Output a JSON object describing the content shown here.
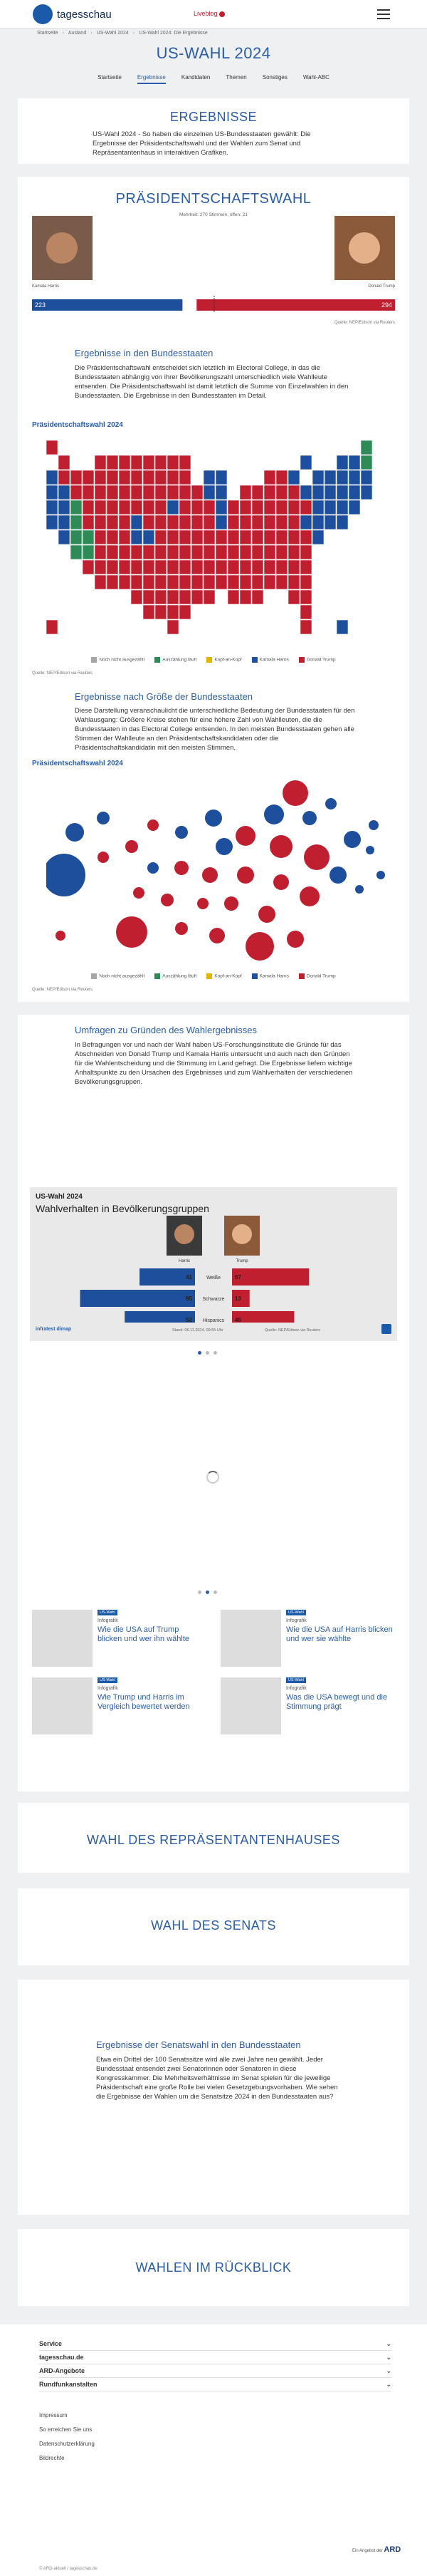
{
  "header": {
    "logo": "tagesschau",
    "liveblog": "Liveblog"
  },
  "breadcrumb": [
    "Startseite",
    "Ausland",
    "US-Wahl 2024",
    "US-Wahl 2024: Die Ergebnisse"
  ],
  "page_title": "US-WAHL 2024",
  "nav": [
    "Startseite",
    "Ergebnisse",
    "Kandidaten",
    "Themen",
    "Sonstiges",
    "Wahl-ABC"
  ],
  "intro": {
    "heading": "ERGEBNISSE",
    "text": "US-Wahl 2024 - So haben die einzelnen US-Bundesstaaten gewählt: Die Ergebnisse der Präsidentschaftswahl und der Wahlen zum Senat und Repräsentantenhaus in interaktiven Grafiken."
  },
  "president": {
    "heading": "PRÄSIDENTSCHAFTSWAHL",
    "majority_label": "Mehrheit:",
    "majority": 270,
    "unit": "Stimmen, offen:",
    "open": 21,
    "candidates": [
      {
        "name": "Kamala Harris",
        "electors": 223,
        "color": "#1d4f9c"
      },
      {
        "name": "Donald Trump",
        "electors": 294,
        "color": "#c01f2f"
      }
    ],
    "source": "Quelle: NEP/Edison via Reuters"
  },
  "states_section": {
    "heading": "Ergebnisse in den Bundesstaaten",
    "text": "Die Präsidentschaftswahl entscheidet sich letztlich im Electoral College, in das die Bundesstaaten abhängig von ihrer Bevölkerungszahl unterschiedlich viele Wahlleute entsenden. Die Präsidentschaftswahl ist damit letztlich die Summe von Einzelwahlen in den Bundesstaaten. Die Ergebnisse in den Bundesstaaten im Detail.",
    "chart_title": "Präsidentschaftswahl 2024",
    "source": "Quelle: NEP/Edison via Reuters"
  },
  "legend": [
    {
      "label": "Noch nicht ausgezählt",
      "color": "#a5a5a5"
    },
    {
      "label": "Auszählung läuft",
      "color": "#2e8b57"
    },
    {
      "label": "Kopf-an-Kopf",
      "color": "#e0b400"
    },
    {
      "label": "Kamala Harris",
      "color": "#1d4f9c"
    },
    {
      "label": "Donald Trump",
      "color": "#c01f2f"
    }
  ],
  "size_section": {
    "heading": "Ergebnisse nach Größe der Bundesstaaten",
    "text": "Diese Darstellung veranschaulicht die unterschiedliche Bedeutung der Bundesstaaten für den Wahlausgang: Größere Kreise stehen für eine höhere Zahl von Wahlleuten, die die Bundesstaaten in das Electoral College entsenden. In den meisten Bundesstaaten gehen alle Stimmen der Wahlleute an den Präsidentschaftskandidaten oder die Präsidentschaftskandidatin mit den meisten Stimmen.",
    "chart_title": "Präsidentschaftswahl 2024",
    "source": "Quelle: NEP/Edison via Reuters"
  },
  "polls": {
    "heading": "Umfragen zu Gründen des Wahlergebnisses",
    "text": "In Befragungen vor und nach der Wahl haben US-Forschungsinstitute die Gründe für das Abschneiden von Donald Trump und Kamala Harris untersucht und auch nach den Gründen für die Wahlentscheidung und die Stimmung im Land gefragt. Die Ergebnisse liefern wichtige Anhaltspunkte zu den Ursachen des Ergebnisses und zum Wahlverhalten der verschiedenen Bevölkerungsgruppen.",
    "card": {
      "kicker": "US-Wahl 2024",
      "title": "Wahlverhalten in Bevölkerungsgruppen",
      "candidates": [
        "Harris",
        "Trump"
      ],
      "groups": [
        {
          "name": "Weiße",
          "values": [
            41,
            57
          ]
        },
        {
          "name": "Schwarze",
          "values": [
            85,
            13
          ]
        },
        {
          "name": "Hispanics",
          "values": [
            52,
            46
          ]
        }
      ],
      "brand": "infratest dimap",
      "stand": "Stand: 06.11.2024, 09:55 Uhr",
      "source": "Quelle: NEP/Edison via Reuters"
    }
  },
  "teasers": [
    {
      "tag": "US-Wahl",
      "kicker": "Infografik",
      "title": "Wie die USA auf Trump blicken und wer ihn wählte"
    },
    {
      "tag": "US-Wahl",
      "kicker": "Infografik",
      "title": "Wie die USA auf Harris blicken und wer sie wählte"
    },
    {
      "tag": "US-Wahl",
      "kicker": "Infografik",
      "title": "Wie Trump und Harris im Vergleich bewertet werden"
    },
    {
      "tag": "US-Wahl",
      "kicker": "Infografik",
      "title": "Was die USA bewegt und die Stimmung prägt"
    }
  ],
  "house": "WAHL DES REPRÄSENTANTENHAUSES",
  "senate": "WAHL DES SENATS",
  "senate_states": {
    "heading": "Ergebnisse der Senatswahl in den Bundesstaaten",
    "text": "Etwa ein Drittel der 100 Senatssitze wird alle zwei Jahre neu gewählt. Jeder Bundesstaat entsendet zwei Senatorinnen oder Senatoren in diese Kongresskammer. Die Mehrheitsverhältnisse im Senat spielen für die jeweilige Präsidentschaft eine große Rolle bei vielen Gesetzgebungsvorhaben. Wie sehen die Ergebnisse der Wahlen um die Senatsitze 2024 in den Bundesstaaten aus?"
  },
  "review": "WAHLEN IM RÜCKBLICK",
  "footer": {
    "sections": [
      "Service",
      "tagesschau.de",
      "ARD-Angebote",
      "Rundfunkanstalten"
    ],
    "links": [
      "Impressum",
      "So erreichen Sie uns",
      "Datenschutzerklärung",
      "Bildrechte"
    ],
    "copyright": "© ARD-aktuell / tagesschau.de",
    "ard_text": "Ein Angebot der",
    "ard_logo": "ARD"
  }
}
